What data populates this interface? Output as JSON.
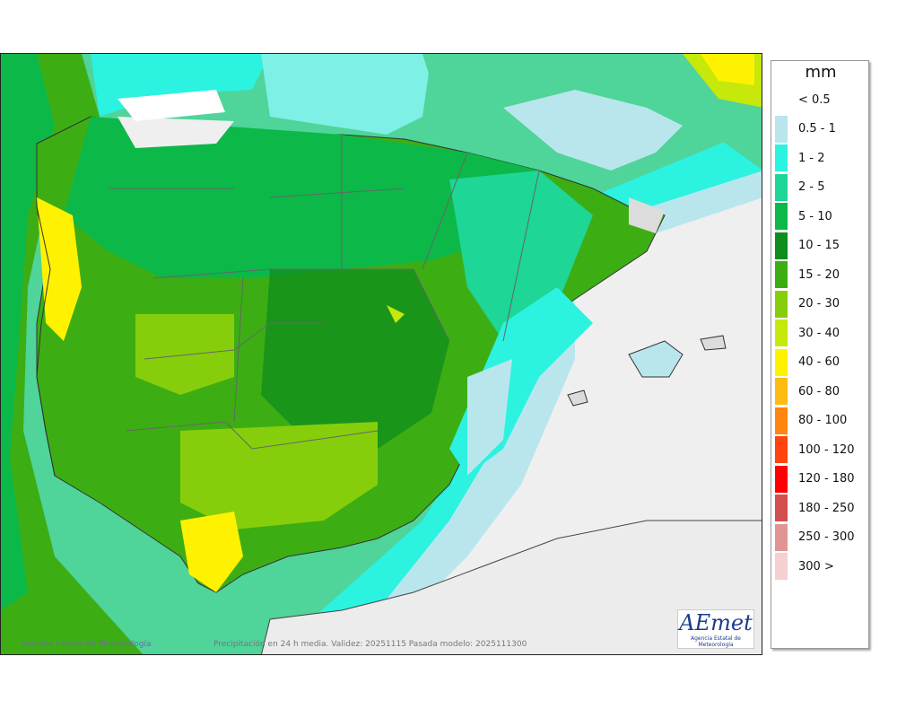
{
  "legend": {
    "unit": "mm",
    "items": [
      {
        "label": "< 0.5",
        "color": "#ffffff"
      },
      {
        "label": "0.5 - 1",
        "color": "#b9e6ec"
      },
      {
        "label": "1 - 2",
        "color": "#2cf2e0"
      },
      {
        "label": "2 - 5",
        "color": "#1ed696"
      },
      {
        "label": "5 - 10",
        "color": "#0cb848"
      },
      {
        "label": "10 - 15",
        "color": "#0e8c1c"
      },
      {
        "label": "15 - 20",
        "color": "#3cae14"
      },
      {
        "label": "20 - 30",
        "color": "#86ce0c"
      },
      {
        "label": "30 - 40",
        "color": "#c6e80a"
      },
      {
        "label": "40 - 60",
        "color": "#fff200"
      },
      {
        "label": "60 - 80",
        "color": "#ffba14"
      },
      {
        "label": "80 - 100",
        "color": "#ff8410"
      },
      {
        "label": "100 - 120",
        "color": "#ff4410"
      },
      {
        "label": "120 - 180",
        "color": "#ff0000"
      },
      {
        "label": "180 - 250",
        "color": "#d25050"
      },
      {
        "label": "250 - 300",
        "color": "#e09494"
      },
      {
        "label": "300 >",
        "color": "#f4d0d0"
      }
    ]
  },
  "footer": {
    "credit": "Agencia Estatal de Meteorología",
    "info": "Precipitación en 24 h media. Validez: 20251115 Pasada modelo: 2025111300"
  },
  "logo": {
    "brand": "AEmet",
    "subtitle": "Agencia Estatal de Meteorología"
  }
}
